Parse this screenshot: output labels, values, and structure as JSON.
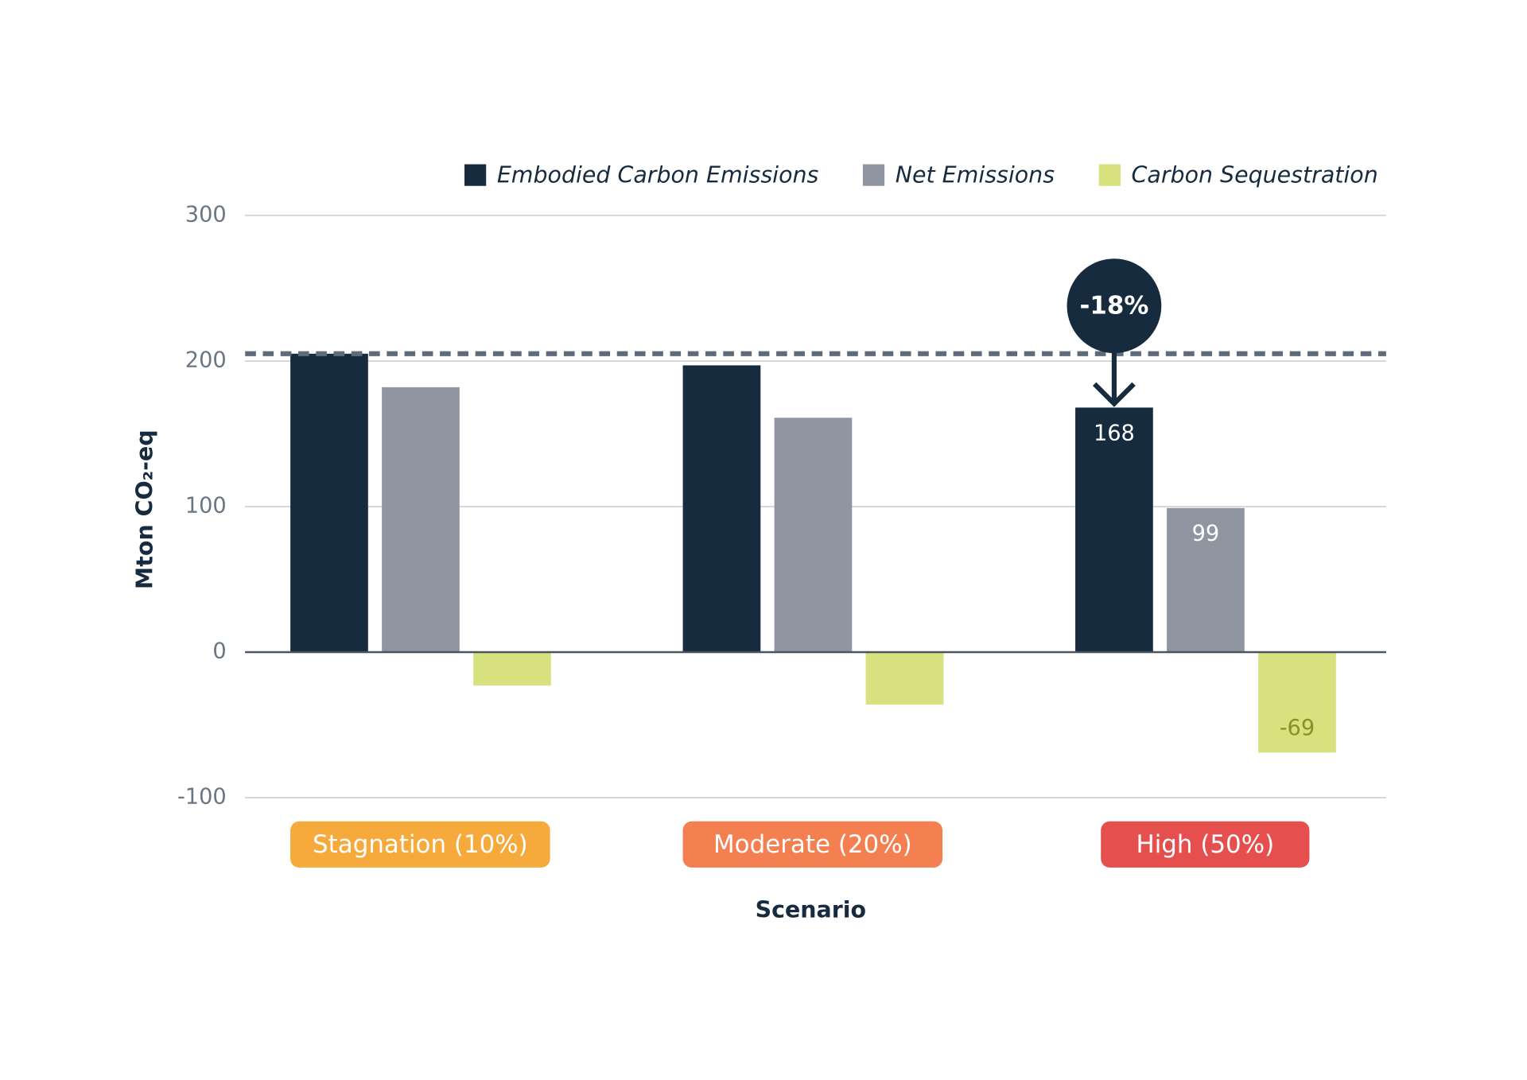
{
  "chart_data": {
    "type": "bar",
    "categories": [
      "Stagnation (10%)",
      "Moderate (20%)",
      "High (50%)"
    ],
    "category_colors": [
      "#f6aa3c",
      "#f47f51",
      "#e5504f"
    ],
    "series": [
      {
        "name": "Embodied Carbon Emissions",
        "color": "#172b3f",
        "values": [
          205,
          197,
          168
        ],
        "value_labels": [
          null,
          null,
          "168"
        ]
      },
      {
        "name": "Net Emissions",
        "color": "#8f96a1",
        "values": [
          182,
          161,
          99
        ],
        "value_labels": [
          null,
          null,
          "99"
        ]
      },
      {
        "name": "Carbon Sequestration",
        "color": "#d7e17e",
        "values": [
          -23,
          -36,
          -69
        ],
        "value_labels": [
          null,
          null,
          "-69"
        ]
      }
    ],
    "ylim": [
      -100,
      300
    ],
    "yticks": [
      -100,
      0,
      100,
      200,
      300
    ],
    "grid": true,
    "reference_line": 205,
    "annotation": "-18%",
    "y_label": "Mton CO₂-eq",
    "x_label": "Scenario",
    "legend": "top-right"
  }
}
